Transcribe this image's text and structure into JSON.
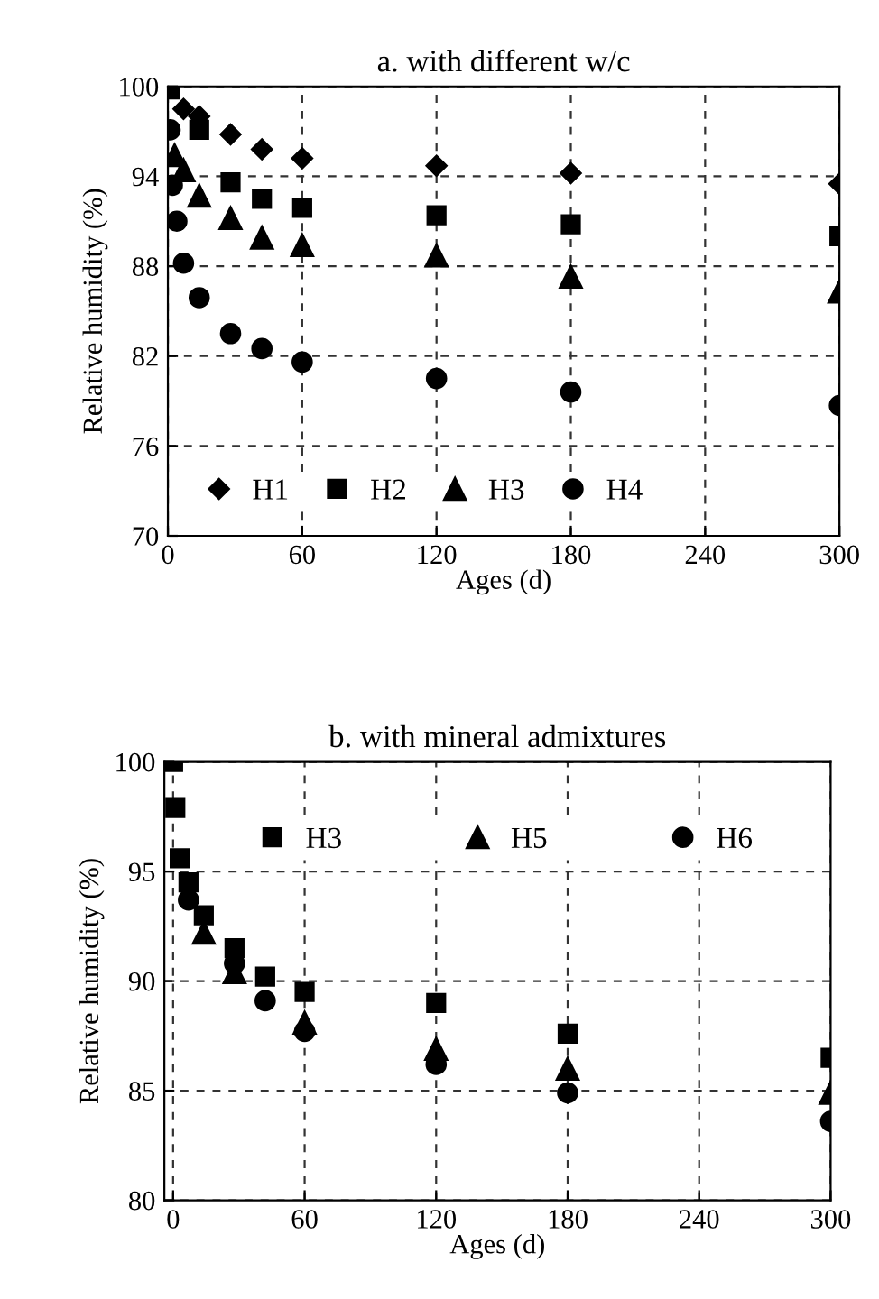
{
  "chart_data": [
    {
      "type": "scatter",
      "title": "a. with different w/c",
      "xlabel": "Ages (d)",
      "ylabel": "Relative humidity (%)",
      "xlim": [
        0,
        300
      ],
      "ylim": [
        70,
        100
      ],
      "xticks": [
        0,
        60,
        120,
        180,
        240,
        300
      ],
      "yticks": [
        70,
        76,
        82,
        88,
        94,
        100
      ],
      "grid": true,
      "legend": "bottom left",
      "series": [
        {
          "name": "H1",
          "color": "#000000",
          "marker": "diamond",
          "x": [
            7,
            14,
            28,
            42,
            60,
            120,
            180,
            300
          ],
          "values": [
            98.5,
            98,
            96.8,
            95.8,
            95.2,
            94.7,
            94.2,
            93.5
          ]
        },
        {
          "name": "H2",
          "color": "#000000",
          "marker": "square",
          "x": [
            1,
            14,
            28,
            42,
            60,
            120,
            180,
            300
          ],
          "values": [
            99.8,
            97.1,
            93.6,
            92.5,
            91.9,
            91.4,
            90.8,
            90.0
          ]
        },
        {
          "name": "H3",
          "color": "#000000",
          "marker": "triangle",
          "x": [
            3,
            7,
            14,
            28,
            42,
            60,
            120,
            180,
            300
          ],
          "values": [
            95.4,
            94.4,
            92.7,
            91.2,
            89.9,
            89.4,
            88.7,
            87.3,
            86.3
          ]
        },
        {
          "name": "H4",
          "color": "#000000",
          "marker": "circle",
          "x": [
            1,
            2,
            4,
            7,
            14,
            28,
            42,
            60,
            120,
            180,
            300
          ],
          "values": [
            97.1,
            93.4,
            91.0,
            88.2,
            85.9,
            83.5,
            82.5,
            81.6,
            80.5,
            79.6,
            78.7
          ]
        }
      ]
    },
    {
      "type": "scatter",
      "title": "b. with mineral admixtures",
      "xlabel": "Ages (d)",
      "ylabel": "Relative humidity (%)",
      "xlim": [
        -4,
        300
      ],
      "ylim": [
        80,
        100
      ],
      "xticks": [
        0,
        60,
        120,
        180,
        240,
        300
      ],
      "yticks": [
        80,
        85,
        90,
        95,
        100
      ],
      "grid": true,
      "legend": "top",
      "series": [
        {
          "name": "H3",
          "color": "#000000",
          "marker": "square",
          "x": [
            0,
            1,
            3,
            7,
            14,
            28,
            42,
            60,
            120,
            180,
            300
          ],
          "values": [
            100,
            97.9,
            95.6,
            94.5,
            93.0,
            91.5,
            90.2,
            89.5,
            89.0,
            87.6,
            86.5
          ]
        },
        {
          "name": "H5",
          "color": "#000000",
          "marker": "triangle",
          "x": [
            14,
            28,
            60,
            120,
            180,
            300
          ],
          "values": [
            92.2,
            90.4,
            88.1,
            86.9,
            86.0,
            84.9
          ]
        },
        {
          "name": "H6",
          "color": "#000000",
          "marker": "circle",
          "x": [
            7,
            28,
            42,
            60,
            120,
            180,
            300
          ],
          "values": [
            93.7,
            90.8,
            89.1,
            87.7,
            86.2,
            84.9,
            83.6
          ]
        }
      ]
    }
  ]
}
